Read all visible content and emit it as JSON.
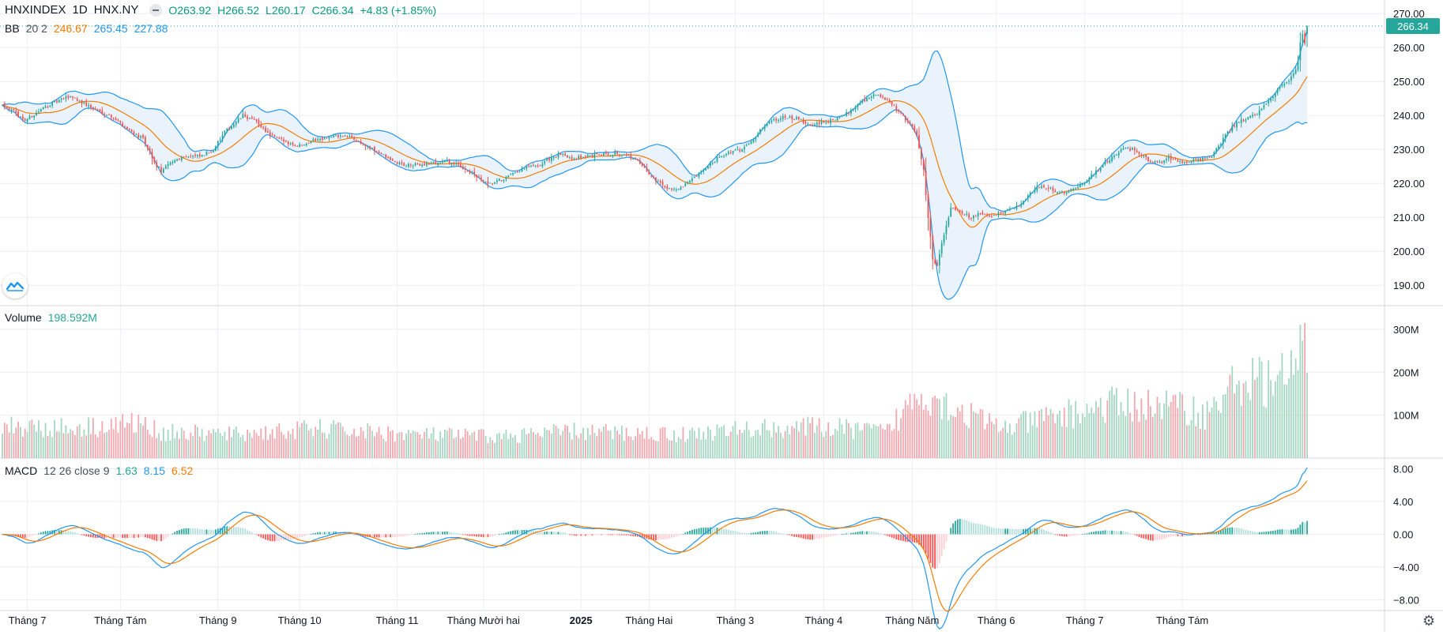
{
  "header": {
    "symbol": "HNXINDEX",
    "interval": "1D",
    "exchange": "HNX.NY",
    "open_label": "O263.92",
    "high_label": "H266.52",
    "low_label": "L260.17",
    "close_label": "C266.34",
    "change_label": "+4.83 (+1.85%)"
  },
  "bb_legend": {
    "name": "BB",
    "params": "20 2",
    "basis": "246.67",
    "upper": "265.45",
    "lower": "227.88"
  },
  "volume_legend": {
    "name": "Volume",
    "value": "198.592M"
  },
  "macd_legend": {
    "name": "MACD",
    "params": "12 26 close 9",
    "hist": "1.63",
    "macd": "8.15",
    "signal": "6.52"
  },
  "colors": {
    "up": "#26a69a",
    "down": "#ef5350",
    "vol_up": "#a5d6c3",
    "vol_down": "#f4a6ae",
    "bb_basis": "#f57c00",
    "bb_band": "#2196f3",
    "bb_fill": "#e8f2fc",
    "macd_line": "#2196f3",
    "signal_line": "#f57c00",
    "grid": "#eceef2"
  },
  "chart_data": [
    {
      "type": "candlestick",
      "title": "HNXINDEX",
      "ylim": [
        184,
        274
      ],
      "yticks": [
        "270.00",
        "260.00",
        "250.00",
        "240.00",
        "230.00",
        "220.00",
        "210.00",
        "200.00",
        "190.00"
      ],
      "last_price_label": "266.34",
      "anchors": [
        [
          0,
          243.5
        ],
        [
          10,
          238.5
        ],
        [
          20,
          243
        ],
        [
          30,
          245.8
        ],
        [
          40,
          242
        ],
        [
          48,
          239.8
        ],
        [
          55,
          236.2
        ],
        [
          62,
          233
        ],
        [
          67,
          226
        ],
        [
          70,
          223.5
        ],
        [
          75,
          226.5
        ],
        [
          80,
          228
        ],
        [
          88,
          228
        ],
        [
          93,
          230
        ],
        [
          98,
          235
        ],
        [
          106,
          240
        ],
        [
          112,
          238.2
        ],
        [
          118,
          234
        ],
        [
          124,
          232.5
        ],
        [
          130,
          231
        ],
        [
          136,
          232.5
        ],
        [
          142,
          233.5
        ],
        [
          148,
          234
        ],
        [
          154,
          233.5
        ],
        [
          160,
          231
        ],
        [
          166,
          229
        ],
        [
          172,
          226.5
        ],
        [
          178,
          225.2
        ],
        [
          184,
          225.5
        ],
        [
          190,
          226
        ],
        [
          196,
          226.5
        ],
        [
          202,
          225
        ],
        [
          208,
          222.5
        ],
        [
          214,
          219.5
        ],
        [
          220,
          221
        ],
        [
          226,
          223
        ],
        [
          232,
          225
        ],
        [
          236,
          224.8
        ],
        [
          240,
          227
        ],
        [
          246,
          228.5
        ],
        [
          252,
          227.5
        ],
        [
          258,
          228
        ],
        [
          264,
          228.5
        ],
        [
          270,
          229
        ],
        [
          276,
          228
        ],
        [
          280,
          226.5
        ],
        [
          286,
          222
        ],
        [
          292,
          219
        ],
        [
          298,
          218
        ],
        [
          304,
          221
        ],
        [
          310,
          224.5
        ],
        [
          316,
          228
        ],
        [
          320,
          229
        ],
        [
          326,
          230
        ],
        [
          332,
          234
        ],
        [
          338,
          238.5
        ],
        [
          344,
          239.5
        ],
        [
          350,
          239
        ],
        [
          356,
          237
        ],
        [
          362,
          238
        ],
        [
          368,
          239
        ],
        [
          373,
          241
        ],
        [
          378,
          244
        ],
        [
          384,
          246
        ],
        [
          388,
          245.5
        ],
        [
          392,
          243
        ],
        [
          396,
          240.5
        ],
        [
          400,
          237.5
        ],
        [
          403,
          234
        ],
        [
          406,
          224
        ],
        [
          408,
          210
        ],
        [
          410,
          198
        ],
        [
          412,
          196
        ],
        [
          415,
          205
        ],
        [
          418,
          213
        ],
        [
          421,
          212.5
        ],
        [
          424,
          211
        ],
        [
          427,
          210
        ],
        [
          430,
          211
        ],
        [
          433,
          210.5
        ],
        [
          436,
          210.5
        ],
        [
          440,
          211
        ],
        [
          445,
          212.5
        ],
        [
          450,
          214.5
        ],
        [
          455,
          218.5
        ],
        [
          460,
          219
        ],
        [
          465,
          217.5
        ],
        [
          470,
          217.5
        ],
        [
          474,
          219
        ],
        [
          478,
          221
        ],
        [
          482,
          223.5
        ],
        [
          486,
          226
        ],
        [
          490,
          228
        ],
        [
          494,
          230.5
        ],
        [
          498,
          230
        ],
        [
          502,
          228.5
        ],
        [
          506,
          226.5
        ],
        [
          510,
          226
        ],
        [
          514,
          227.5
        ],
        [
          518,
          226.5
        ],
        [
          522,
          226.5
        ],
        [
          526,
          227
        ],
        [
          530,
          227.5
        ],
        [
          533,
          228
        ],
        [
          536,
          231
        ],
        [
          540,
          235
        ],
        [
          544,
          238
        ],
        [
          548,
          239
        ],
        [
          552,
          240
        ],
        [
          556,
          243
        ],
        [
          560,
          246
        ],
        [
          564,
          249
        ],
        [
          567,
          250
        ],
        [
          569,
          252
        ],
        [
          571,
          256
        ],
        [
          572,
          262
        ],
        [
          573,
          264
        ],
        [
          574,
          261.5
        ],
        [
          575,
          266.34
        ]
      ],
      "ohlc_last": {
        "open": 263.92,
        "high": 266.52,
        "low": 260.17,
        "close": 266.34
      },
      "bollinger": {
        "period": 20,
        "mult": 2,
        "basis": 246.67,
        "upper": 265.45,
        "lower": 227.88
      }
    },
    {
      "type": "bar",
      "title": "Volume",
      "ylim": [
        0,
        355
      ],
      "unit": "M",
      "yticks": [
        "300M",
        "200M",
        "100M"
      ],
      "anchors": [
        [
          0,
          75
        ],
        [
          30,
          70
        ],
        [
          60,
          82
        ],
        [
          70,
          60
        ],
        [
          100,
          55
        ],
        [
          140,
          68
        ],
        [
          180,
          55
        ],
        [
          220,
          50
        ],
        [
          250,
          62
        ],
        [
          300,
          55
        ],
        [
          330,
          68
        ],
        [
          360,
          72
        ],
        [
          390,
          62
        ],
        [
          405,
          160
        ],
        [
          410,
          145
        ],
        [
          420,
          115
        ],
        [
          440,
          70
        ],
        [
          460,
          92
        ],
        [
          490,
          125
        ],
        [
          520,
          120
        ],
        [
          530,
          100
        ],
        [
          545,
          180
        ],
        [
          560,
          180
        ],
        [
          570,
          190
        ],
        [
          572,
          315
        ],
        [
          575,
          198.592
        ]
      ],
      "last_value": 198.592
    },
    {
      "type": "line",
      "title": "MACD",
      "ylim": [
        -9.3,
        9.3
      ],
      "yticks": [
        "8.00",
        "4.00",
        "0.00",
        "−4.00",
        "−8.00"
      ],
      "last_macd": 8.15,
      "last_signal": 6.52,
      "last_hist": 1.63
    }
  ],
  "x_axis": {
    "labels": [
      {
        "text": "Tháng 7",
        "day": 11,
        "bold": false
      },
      {
        "text": "Tháng Tám",
        "day": 52,
        "bold": false
      },
      {
        "text": "Tháng 9",
        "day": 95,
        "bold": false
      },
      {
        "text": "Tháng 10",
        "day": 131,
        "bold": false
      },
      {
        "text": "Tháng 11",
        "day": 174,
        "bold": false
      },
      {
        "text": "Tháng Mười hai",
        "day": 212,
        "bold": false
      },
      {
        "text": "2025",
        "day": 255,
        "bold": true
      },
      {
        "text": "Tháng Hai",
        "day": 285,
        "bold": false
      },
      {
        "text": "Tháng 3",
        "day": 323,
        "bold": false
      },
      {
        "text": "Tháng 4",
        "day": 362,
        "bold": false
      },
      {
        "text": "Tháng Năm",
        "day": 401,
        "bold": false
      },
      {
        "text": "Tháng 6",
        "day": 438,
        "bold": false
      },
      {
        "text": "Tháng 7",
        "day": 477,
        "bold": false
      },
      {
        "text": "Tháng Tám",
        "day": 520,
        "bold": false
      }
    ]
  },
  "icons": {
    "logo": "tradingview-logo-icon",
    "settings": "gear-icon",
    "collapse": "collapse-toggle-icon"
  }
}
